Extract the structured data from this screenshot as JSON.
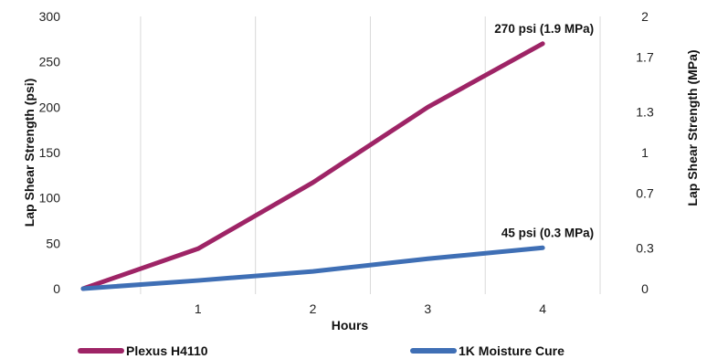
{
  "chart_data": {
    "type": "line",
    "xlabel": "Hours",
    "ylabel": "Lap Shear Strength (psi)",
    "y2label": "Lap Shear Strength (MPa)",
    "xlim": [
      0,
      4.5
    ],
    "ylim": [
      0,
      300
    ],
    "y2lim": [
      0,
      2
    ],
    "x_ticks": [
      "1",
      "2",
      "3",
      "4"
    ],
    "x_tick_values": [
      1,
      2,
      3,
      4
    ],
    "y_ticks": [
      "0",
      "50",
      "100",
      "150",
      "200",
      "250",
      "300"
    ],
    "y_tick_values": [
      0,
      50,
      100,
      150,
      200,
      250,
      300
    ],
    "y2_ticks": [
      "0",
      "0.3",
      "0.7",
      "1",
      "1.3",
      "1.7",
      "2"
    ],
    "y2_tick_values": [
      0,
      0.3,
      0.7,
      1,
      1.3,
      1.7,
      2
    ],
    "grid": "vertical",
    "legend_position": "bottom",
    "series": [
      {
        "name": "Plexus H4110",
        "color": "#9e2466",
        "x": [
          0,
          1,
          2,
          3,
          4
        ],
        "values": [
          0,
          44,
          117,
          200,
          270
        ]
      },
      {
        "name": "1K Moisture Cure",
        "color": "#3f6fb5",
        "x": [
          0,
          1,
          2,
          3,
          4
        ],
        "values": [
          0,
          9,
          19,
          33,
          45
        ]
      }
    ],
    "annotations": [
      {
        "text": "270 psi (1.9 MPa)",
        "series": 0,
        "x": 4,
        "y": 270
      },
      {
        "text": "45 psi (0.3 MPa)",
        "series": 1,
        "x": 4,
        "y": 45
      }
    ]
  }
}
